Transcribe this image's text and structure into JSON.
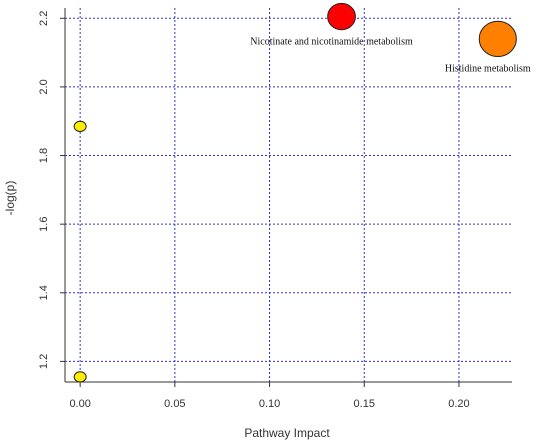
{
  "chart_data": {
    "type": "scatter",
    "xlabel": "Pathway Impact",
    "ylabel": "-log(p)",
    "xlim": [
      -0.008,
      0.228
    ],
    "ylim": [
      1.14,
      2.23
    ],
    "x_ticks": [
      {
        "value": 0.0,
        "label": "0.00"
      },
      {
        "value": 0.05,
        "label": "0.05"
      },
      {
        "value": 0.1,
        "label": "0.10"
      },
      {
        "value": 0.15,
        "label": "0.15"
      },
      {
        "value": 0.2,
        "label": "0.20"
      }
    ],
    "y_ticks": [
      {
        "value": 1.2,
        "label": "1.2"
      },
      {
        "value": 1.4,
        "label": "1.4"
      },
      {
        "value": 1.6,
        "label": "1.6"
      },
      {
        "value": 1.8,
        "label": "1.8"
      },
      {
        "value": 2.0,
        "label": "2.0"
      },
      {
        "value": 2.2,
        "label": "2.2"
      }
    ],
    "grid": true,
    "grid_color": "#3333cc",
    "points": [
      {
        "x": 0.138,
        "y": 2.205,
        "color": "#ff0000",
        "label": "Nicotinate and nicotinamide metabolism"
      },
      {
        "x": 0.2205,
        "y": 2.14,
        "color": "#ff7f00",
        "label": "Histidine metabolism"
      },
      {
        "x": 0.0,
        "y": 1.885,
        "color": "#ffee00",
        "label": ""
      },
      {
        "x": 0.0,
        "y": 1.155,
        "color": "#ffee00",
        "label": ""
      }
    ]
  }
}
